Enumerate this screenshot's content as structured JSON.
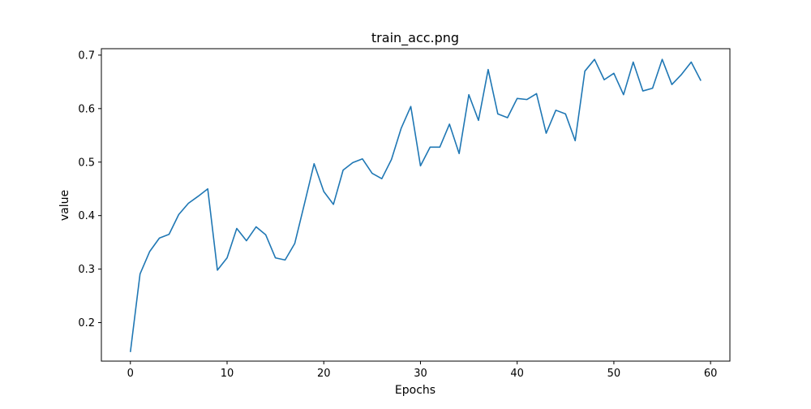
{
  "chart_data": {
    "type": "line",
    "title": "train_acc.png",
    "xlabel": "Epochs",
    "ylabel": "value",
    "xlim": [
      -3,
      62
    ],
    "ylim": [
      0.128,
      0.712
    ],
    "xticks": [
      0,
      10,
      20,
      30,
      40,
      50,
      60
    ],
    "yticks": [
      0.2,
      0.3,
      0.4,
      0.5,
      0.6,
      0.7
    ],
    "line_color": "#1f77b4",
    "grid": false,
    "series": [
      {
        "x": [
          0,
          1,
          2,
          3,
          4,
          5,
          6,
          7,
          8,
          9,
          10,
          11,
          12,
          13,
          14,
          15,
          16,
          17,
          18,
          19,
          20,
          21,
          22,
          23,
          24,
          25,
          26,
          27,
          28,
          29,
          30,
          31,
          32,
          33,
          34,
          35,
          36,
          37,
          38,
          39,
          40,
          41,
          42,
          43,
          44,
          45,
          46,
          47,
          48,
          49,
          50,
          51,
          52,
          53,
          54,
          55,
          56,
          57,
          58,
          59
        ],
        "values": [
          0.145,
          0.291,
          0.333,
          0.358,
          0.365,
          0.402,
          0.423,
          0.436,
          0.45,
          0.298,
          0.321,
          0.376,
          0.353,
          0.379,
          0.364,
          0.321,
          0.317,
          0.348,
          0.422,
          0.497,
          0.445,
          0.421,
          0.485,
          0.499,
          0.506,
          0.479,
          0.469,
          0.505,
          0.563,
          0.604,
          0.493,
          0.528,
          0.528,
          0.571,
          0.516,
          0.626,
          0.578,
          0.673,
          0.59,
          0.583,
          0.619,
          0.617,
          0.628,
          0.554,
          0.597,
          0.59,
          0.54,
          0.67,
          0.692,
          0.654,
          0.666,
          0.626,
          0.687,
          0.633,
          0.638,
          0.692,
          0.645,
          0.664,
          0.687,
          0.652
        ]
      }
    ]
  }
}
